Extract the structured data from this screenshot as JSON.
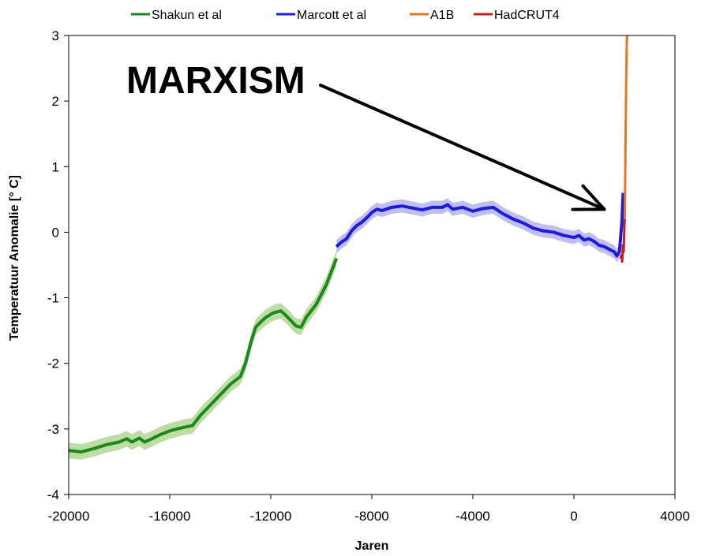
{
  "chart_data": {
    "type": "line",
    "title": "",
    "xlabel": "Jaren",
    "ylabel": "Temperatuur Anomalie [° C]",
    "xlim": [
      -20000,
      4000
    ],
    "ylim": [
      -4,
      3
    ],
    "x_ticks": [
      -20000,
      -16000,
      -12000,
      -8000,
      -4000,
      0,
      4000
    ],
    "y_ticks": [
      3,
      2,
      1,
      0,
      -1,
      -2,
      -3,
      -4
    ],
    "grid": false,
    "legend_position": "top",
    "legend": [
      "Shakun et al",
      "Marcott et al",
      "A1B",
      "HadCRUT4"
    ],
    "annotation": {
      "text": "MARXISM",
      "arrow_to": [
        1200,
        0.35
      ]
    },
    "series": [
      {
        "name": "Shakun et al",
        "color": "#1a8a1a",
        "band_color": "#b8d89a",
        "band_width": 0.12,
        "x": [
          -20000,
          -19500,
          -19000,
          -18500,
          -18000,
          -17700,
          -17500,
          -17200,
          -17000,
          -16700,
          -16400,
          -16000,
          -15500,
          -15100,
          -14800,
          -14500,
          -14000,
          -13600,
          -13200,
          -13000,
          -12800,
          -12600,
          -12400,
          -12200,
          -11900,
          -11600,
          -11400,
          -11200,
          -11000,
          -10800,
          -10600,
          -10400,
          -10200,
          -10000,
          -9800,
          -9600,
          -9400
        ],
        "y": [
          -3.33,
          -3.35,
          -3.3,
          -3.24,
          -3.2,
          -3.15,
          -3.2,
          -3.14,
          -3.2,
          -3.15,
          -3.09,
          -3.03,
          -2.98,
          -2.95,
          -2.8,
          -2.68,
          -2.48,
          -2.32,
          -2.2,
          -2.0,
          -1.7,
          -1.45,
          -1.37,
          -1.3,
          -1.23,
          -1.2,
          -1.27,
          -1.35,
          -1.43,
          -1.45,
          -1.3,
          -1.2,
          -1.1,
          -0.95,
          -0.8,
          -0.6,
          -0.4
        ]
      },
      {
        "name": "Marcott et al",
        "color": "#1a1aee",
        "band_color": "#b8b8f0",
        "band_width": 0.1,
        "x": [
          -9400,
          -9200,
          -9000,
          -8800,
          -8600,
          -8400,
          -8200,
          -8000,
          -7800,
          -7600,
          -7200,
          -6800,
          -6400,
          -6000,
          -5600,
          -5200,
          -5000,
          -4800,
          -4400,
          -4000,
          -3600,
          -3200,
          -2800,
          -2400,
          -2000,
          -1600,
          -1200,
          -800,
          -400,
          0,
          200,
          400,
          600,
          800,
          1000,
          1200,
          1400,
          1600,
          1700,
          1800,
          1900,
          1950
        ],
        "y": [
          -0.22,
          -0.15,
          -0.1,
          0.02,
          0.1,
          0.15,
          0.22,
          0.3,
          0.35,
          0.33,
          0.38,
          0.4,
          0.37,
          0.34,
          0.38,
          0.38,
          0.42,
          0.35,
          0.38,
          0.32,
          0.36,
          0.38,
          0.28,
          0.2,
          0.14,
          0.06,
          0.02,
          0.0,
          -0.05,
          -0.08,
          -0.05,
          -0.12,
          -0.1,
          -0.14,
          -0.2,
          -0.22,
          -0.26,
          -0.3,
          -0.36,
          -0.3,
          0.15,
          0.6
        ]
      },
      {
        "name": "HadCRUT4",
        "color": "#cc1a1a",
        "x": [
          1850,
          1880,
          1910,
          1940,
          1970,
          2000,
          2013
        ],
        "y": [
          -0.4,
          -0.35,
          -0.45,
          -0.2,
          -0.3,
          0.1,
          0.2
        ]
      },
      {
        "name": "A1B",
        "color": "#e8761c",
        "x": [
          2013,
          2030,
          2050,
          2070,
          2090,
          2100
        ],
        "y": [
          0.2,
          0.8,
          1.6,
          2.3,
          2.8,
          3.0
        ]
      }
    ]
  }
}
